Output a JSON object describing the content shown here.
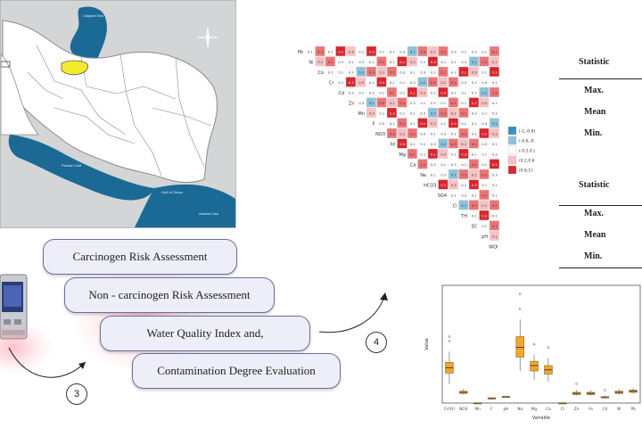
{
  "map": {
    "labels": [
      "Caspian Sea",
      "Persian Gulf",
      "Gulf of Oman",
      "Arabian Sea"
    ],
    "colors": {
      "land": "#ffffff",
      "water": "#1b6a95",
      "highlight": "#f5ea2c",
      "background": "#d3d5d7",
      "border": "#8a8a8a"
    }
  },
  "steps": [
    {
      "label": "Carcinogen Risk Assessment"
    },
    {
      "label": "Non - carcinogen Risk Assessment"
    },
    {
      "label": "Water Quality Index and,"
    },
    {
      "label": "Contamination Degree Evaluation"
    }
  ],
  "markers": {
    "three": "3",
    "four": "4"
  },
  "stat_tables": [
    {
      "header": "Statistic",
      "rows": [
        "Max.",
        "Mean",
        "Min."
      ]
    },
    {
      "header": "Statistic",
      "rows": [
        "Max.",
        "Mean",
        "Min."
      ]
    }
  ],
  "heatmap": {
    "variables": [
      "WQI",
      "pH",
      "EC",
      "TH",
      "Cl",
      "SO4",
      "HCO3",
      "Na",
      "Ca",
      "Mg",
      "Fe",
      "NO3",
      "F",
      "Mn",
      "Zn",
      "Cd",
      "Cr",
      "Co",
      "Ni",
      "Pb"
    ],
    "legend": [
      "[-1,-0.6]",
      "(-0.6,-0.2]",
      "(-0.2,0.2]",
      "(0.2,0.6]",
      "(0.6,1]"
    ],
    "colors": {
      "strong_pos": "#d7282d",
      "pos": "#eb7576",
      "weak_pos": "#f6c2c2",
      "neutral": "#ffffff",
      "neg": "#8fc1dc",
      "strong_neg": "#3d8fc0"
    }
  },
  "chart_data": {
    "type": "box",
    "xlabel": "Variable",
    "ylabel": "Value",
    "categories": [
      "Cr(VI)",
      "NO3",
      "Mn",
      "F",
      "pH",
      "Na",
      "Mg",
      "Ca",
      "Cl",
      "Zn",
      "Fe",
      "Cd",
      "Ni",
      "Pb"
    ],
    "box_color": "#f0a82a",
    "boxes": [
      {
        "q1": 0.28,
        "median": 0.33,
        "q3": 0.38,
        "lo": 0.18,
        "hi": 0.48
      },
      {
        "q1": 0.09,
        "median": 0.1,
        "q3": 0.11,
        "lo": 0.08,
        "hi": 0.13
      },
      {
        "q1": 0.0,
        "median": 0.0,
        "q3": 0.0,
        "lo": 0.0,
        "hi": 0.0
      },
      {
        "q1": 0.04,
        "median": 0.04,
        "q3": 0.05,
        "lo": 0.03,
        "hi": 0.05
      },
      {
        "q1": 0.06,
        "median": 0.06,
        "q3": 0.06,
        "lo": 0.06,
        "hi": 0.06
      },
      {
        "q1": 0.43,
        "median": 0.52,
        "q3": 0.62,
        "lo": 0.3,
        "hi": 0.78
      },
      {
        "q1": 0.3,
        "median": 0.35,
        "q3": 0.39,
        "lo": 0.22,
        "hi": 0.45
      },
      {
        "q1": 0.27,
        "median": 0.31,
        "q3": 0.35,
        "lo": 0.2,
        "hi": 0.42
      },
      {
        "q1": 0.0,
        "median": 0.0,
        "q3": 0.0,
        "lo": 0.0,
        "hi": 0.0
      },
      {
        "q1": 0.08,
        "median": 0.09,
        "q3": 0.1,
        "lo": 0.07,
        "hi": 0.12
      },
      {
        "q1": 0.08,
        "median": 0.09,
        "q3": 0.1,
        "lo": 0.07,
        "hi": 0.12
      },
      {
        "q1": 0.05,
        "median": 0.05,
        "q3": 0.06,
        "lo": 0.04,
        "hi": 0.07
      },
      {
        "q1": 0.09,
        "median": 0.1,
        "q3": 0.11,
        "lo": 0.08,
        "hi": 0.13
      },
      {
        "q1": 0.1,
        "median": 0.11,
        "q3": 0.12,
        "lo": 0.09,
        "hi": 0.14
      }
    ],
    "outliers": [
      {
        "i": 0,
        "v": 0.62
      },
      {
        "i": 0,
        "v": 0.58
      },
      {
        "i": 5,
        "v": 1.02
      },
      {
        "i": 5,
        "v": 0.88
      },
      {
        "i": 6,
        "v": 0.55
      },
      {
        "i": 7,
        "v": 0.52
      },
      {
        "i": 9,
        "v": 0.18
      },
      {
        "i": 11,
        "v": 0.12
      }
    ],
    "ylim": [
      0,
      1.1
    ]
  }
}
